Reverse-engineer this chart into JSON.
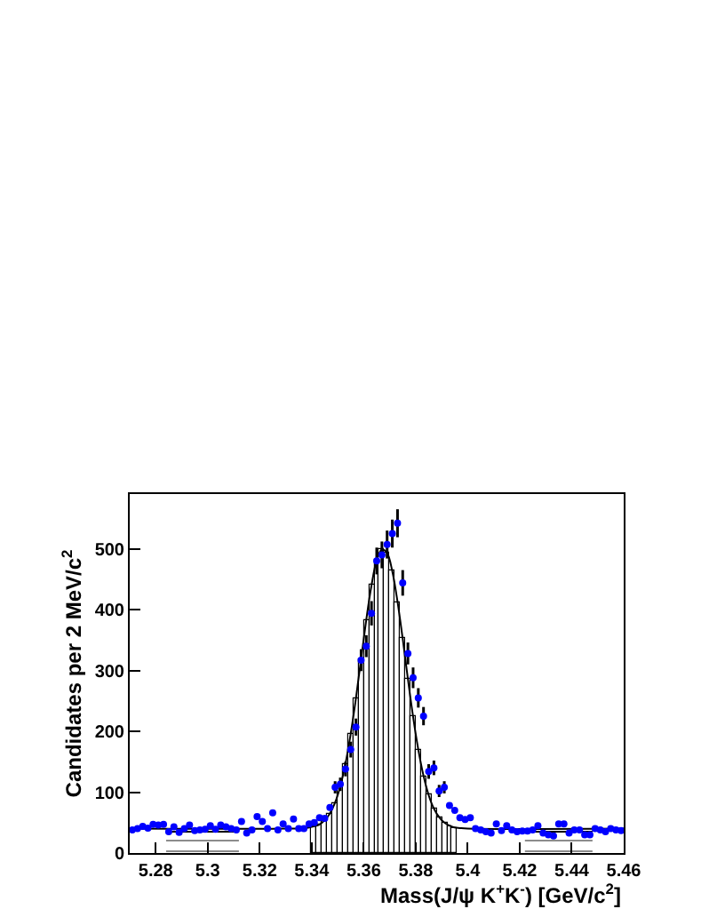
{
  "chart_data": {
    "type": "scatter",
    "xlabel": "Mass(J/ψ K$^{+}$K$^{-}$) [GeV/c$^{2}$]",
    "ylabel": "Candidates per 2 MeV/c$^{2}$",
    "xlim": [
      5.27,
      5.46
    ],
    "xticks": [
      5.28,
      5.3,
      5.32,
      5.34,
      5.36,
      5.38,
      5.4,
      5.42,
      5.44,
      5.46
    ],
    "ylim": [
      0,
      590
    ],
    "yticks": [
      0,
      100,
      200,
      300,
      400,
      500
    ],
    "series": [
      {
        "type": "bar",
        "color": "#000000",
        "x": [
          5.341,
          5.343,
          5.345,
          5.347,
          5.349,
          5.351,
          5.353,
          5.355,
          5.357,
          5.359,
          5.361,
          5.363,
          5.365,
          5.367,
          5.369,
          5.371,
          5.373,
          5.375,
          5.377,
          5.379,
          5.381,
          5.383,
          5.385,
          5.387,
          5.389,
          5.391,
          5.393,
          5.395
        ],
        "values": [
          44,
          47,
          54,
          65,
          83,
          110,
          147,
          196,
          254,
          319,
          384,
          440,
          481,
          499,
          493,
          463,
          413,
          352,
          286,
          224,
          170,
          127,
          95,
          73,
          59,
          50,
          45,
          42
        ]
      },
      {
        "type": "area",
        "color": "#000000",
        "x": [
          5.284,
          5.312
        ],
        "values": [
          35,
          35
        ]
      },
      {
        "type": "area",
        "color": "#000000",
        "x": [
          5.422,
          5.448
        ],
        "values": [
          35,
          35
        ]
      },
      {
        "type": "line",
        "color": "#000000",
        "x": [
          5.27,
          5.33,
          5.337,
          5.339,
          5.341,
          5.343,
          5.345,
          5.347,
          5.349,
          5.351,
          5.353,
          5.355,
          5.357,
          5.359,
          5.361,
          5.363,
          5.365,
          5.367,
          5.369,
          5.371,
          5.373,
          5.375,
          5.377,
          5.379,
          5.381,
          5.383,
          5.385,
          5.387,
          5.389,
          5.391,
          5.393,
          5.395,
          5.397,
          5.4,
          5.46
        ],
        "values": [
          40,
          40,
          41,
          42,
          44,
          47,
          54,
          65,
          83,
          110,
          147,
          196,
          254,
          319,
          384,
          440,
          481,
          499,
          493,
          463,
          413,
          352,
          286,
          224,
          170,
          127,
          95,
          73,
          59,
          50,
          45,
          42,
          41,
          40,
          40
        ]
      },
      {
        "marker": "circle",
        "color": "#0000ff",
        "x": [
          5.271,
          5.273,
          5.275,
          5.277,
          5.279,
          5.281,
          5.283,
          5.285,
          5.287,
          5.289,
          5.291,
          5.293,
          5.295,
          5.297,
          5.299,
          5.301,
          5.303,
          5.305,
          5.307,
          5.309,
          5.311,
          5.313,
          5.315,
          5.317,
          5.319,
          5.321,
          5.323,
          5.325,
          5.327,
          5.329,
          5.331,
          5.333,
          5.335,
          5.337,
          5.339,
          5.341,
          5.343,
          5.345,
          5.347,
          5.349,
          5.351,
          5.353,
          5.355,
          5.357,
          5.359,
          5.361,
          5.363,
          5.365,
          5.367,
          5.369,
          5.371,
          5.373,
          5.375,
          5.377,
          5.379,
          5.381,
          5.383,
          5.385,
          5.387,
          5.389,
          5.391,
          5.393,
          5.395,
          5.397,
          5.399,
          5.401,
          5.403,
          5.405,
          5.407,
          5.409,
          5.411,
          5.413,
          5.415,
          5.417,
          5.419,
          5.421,
          5.423,
          5.425,
          5.427,
          5.429,
          5.431,
          5.433,
          5.435,
          5.437,
          5.439,
          5.441,
          5.443,
          5.445,
          5.447,
          5.449,
          5.451,
          5.453,
          5.455,
          5.457,
          5.459
        ],
        "values": [
          38,
          40,
          44,
          41,
          47,
          46,
          47,
          35,
          43,
          34,
          40,
          46,
          37,
          38,
          39,
          45,
          39,
          46,
          43,
          40,
          38,
          52,
          33,
          38,
          60,
          52,
          40,
          66,
          38,
          48,
          40,
          56,
          40,
          40,
          48,
          50,
          58,
          57,
          75,
          108,
          113,
          138,
          170,
          207,
          317,
          340,
          394,
          480,
          490,
          507,
          525,
          542,
          444,
          328,
          288,
          255,
          225,
          134,
          140,
          102,
          108,
          78,
          70,
          58,
          55,
          58,
          40,
          38,
          35,
          33,
          48,
          37,
          45,
          38,
          35,
          36,
          36,
          38,
          45,
          33,
          30,
          28,
          48,
          48,
          33,
          38,
          38,
          30,
          30,
          40,
          38,
          35,
          40,
          38,
          37
        ],
        "errors": [
          null,
          null,
          null,
          null,
          null,
          null,
          null,
          null,
          null,
          null,
          null,
          null,
          null,
          null,
          null,
          null,
          null,
          null,
          null,
          null,
          null,
          null,
          null,
          null,
          null,
          null,
          null,
          null,
          null,
          null,
          null,
          null,
          null,
          null,
          null,
          null,
          null,
          null,
          null,
          10,
          11,
          12,
          13,
          14,
          18,
          18,
          20,
          22,
          22,
          23,
          23,
          23,
          21,
          18,
          17,
          16,
          15,
          12,
          12,
          10,
          10,
          null,
          null,
          null,
          null,
          null,
          null,
          null,
          null,
          null,
          null,
          null,
          null,
          null,
          null,
          null,
          null,
          null,
          null,
          null,
          null,
          null,
          null,
          null,
          null,
          null,
          null,
          null,
          null,
          null,
          null,
          null,
          null,
          null,
          null
        ]
      }
    ]
  }
}
